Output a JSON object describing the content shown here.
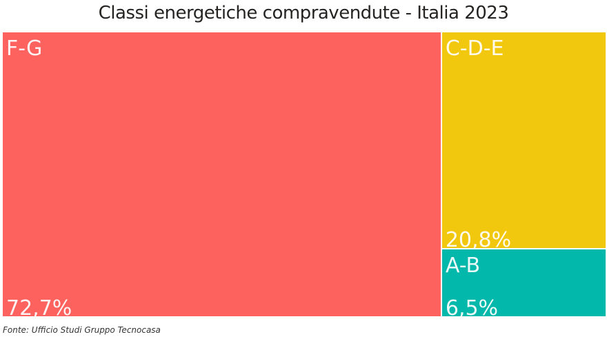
{
  "chart_data": {
    "type": "treemap",
    "title": "Classi energetiche compravendute - Italia 2023",
    "categories": [
      "F-G",
      "C-D-E",
      "A-B"
    ],
    "values": [
      72.7,
      20.8,
      6.5
    ],
    "value_labels": [
      "72,7%",
      "20,8%",
      "6,5%"
    ],
    "colors": [
      "#FD625E",
      "#F2C80F",
      "#01B8AA"
    ]
  },
  "source": "Fonte: Ufficio Studi Gruppo Tecnocasa"
}
